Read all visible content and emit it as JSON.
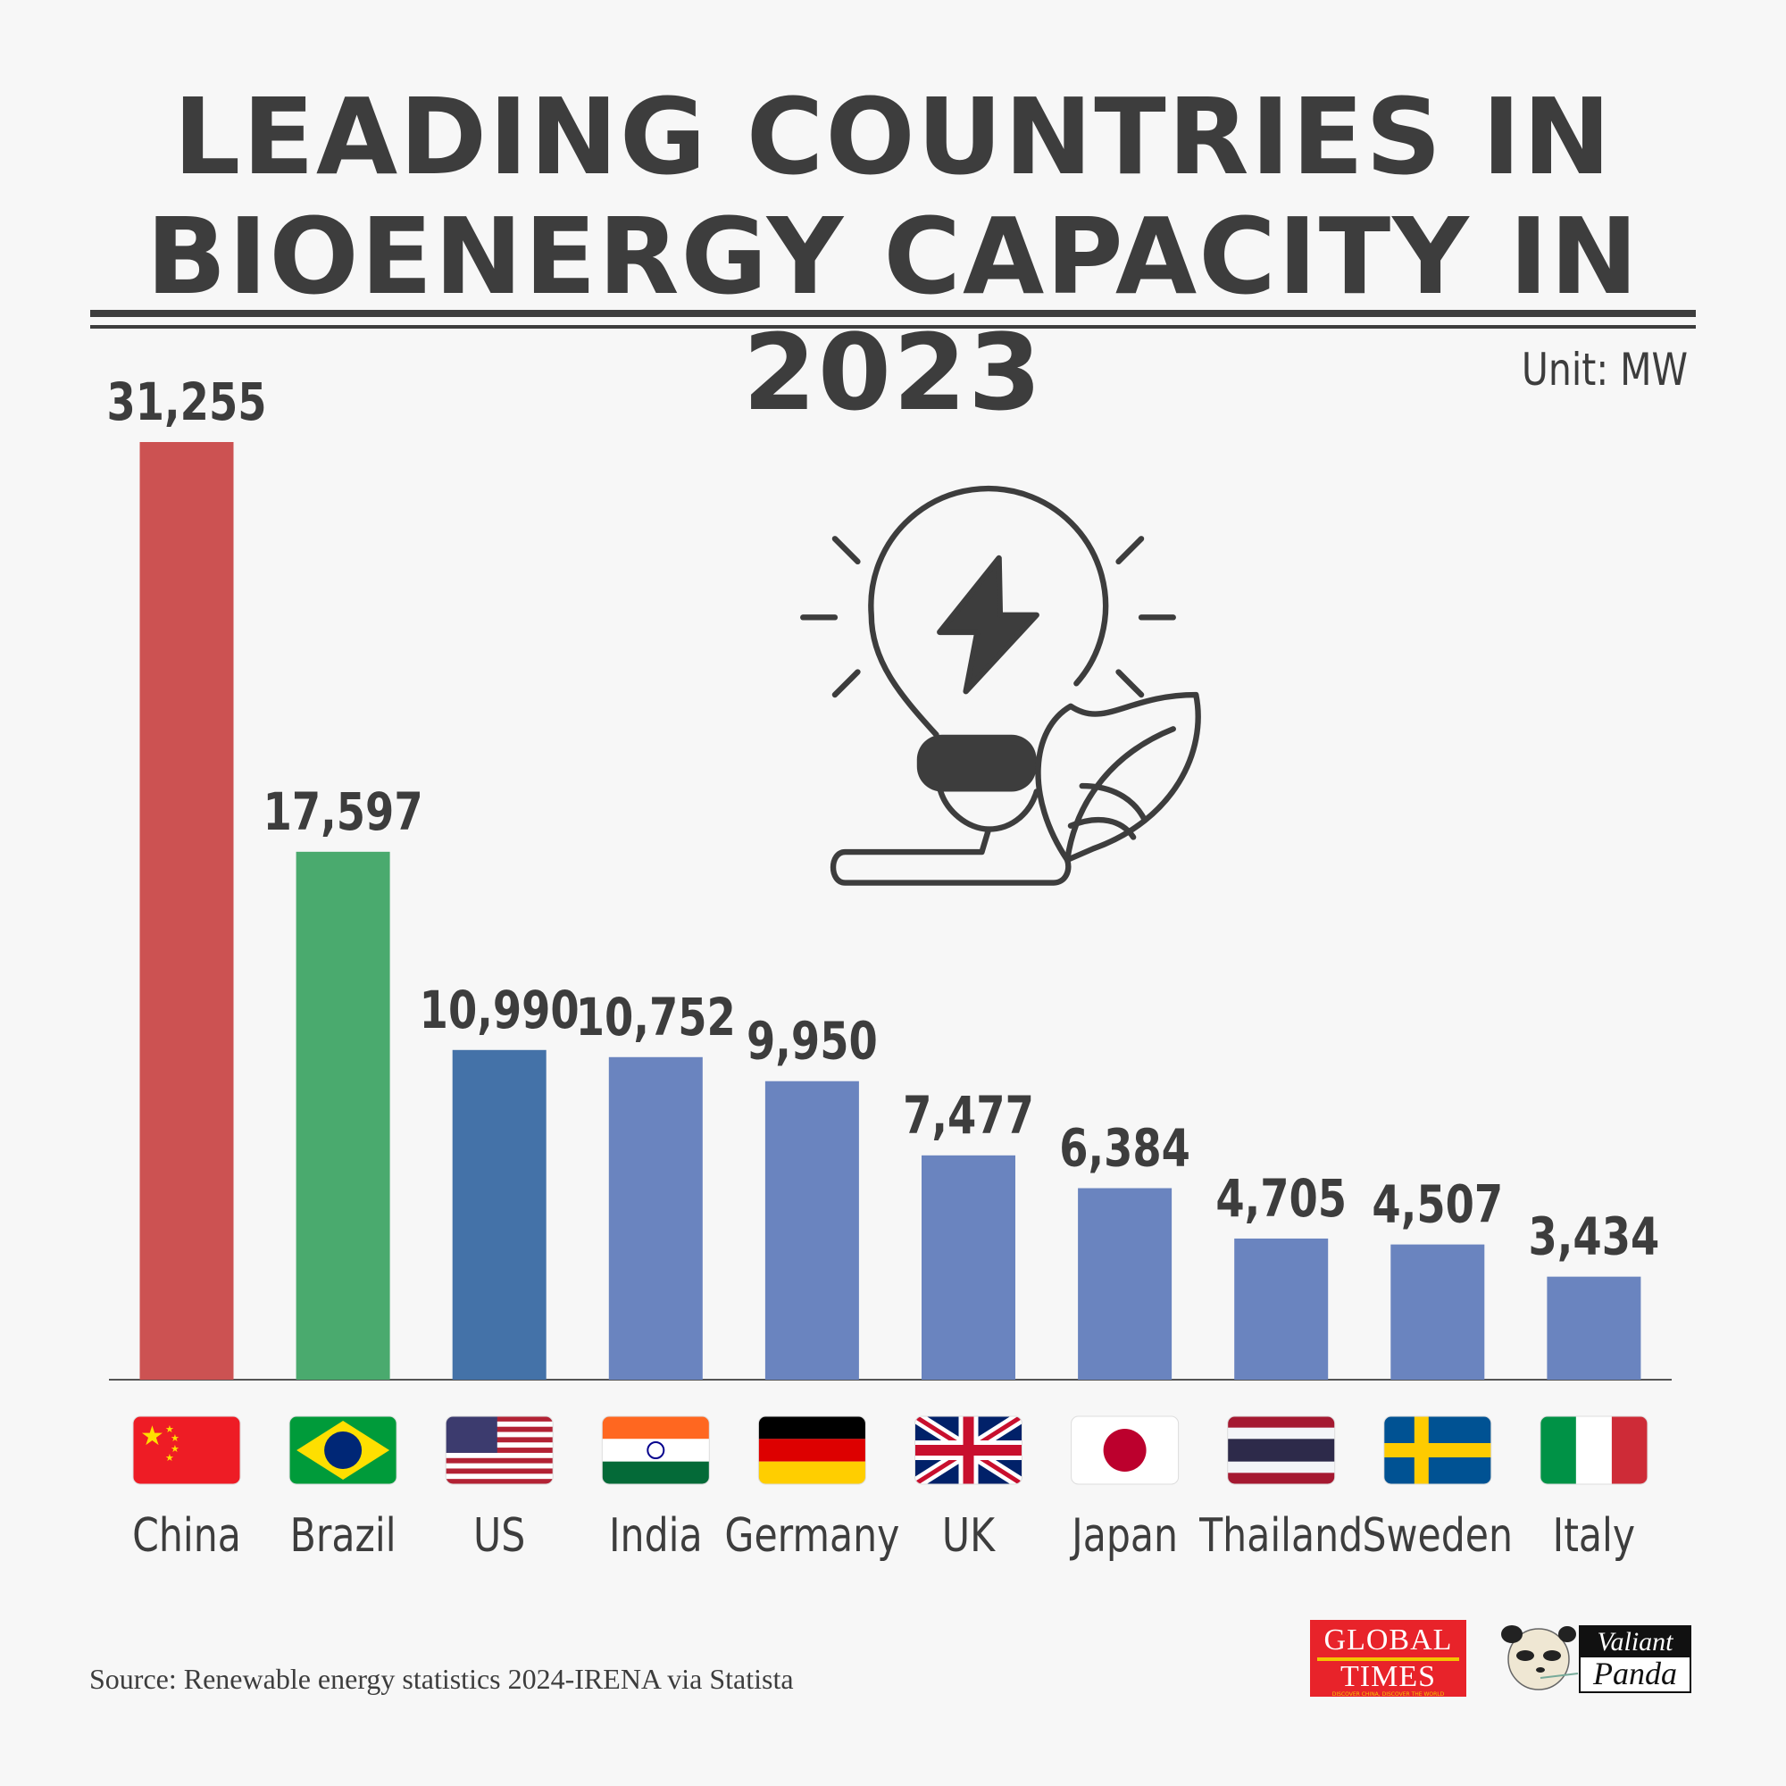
{
  "title_line1": "LEADING COUNTRIES IN",
  "title_line2": "BIOENERGY CAPACITY IN 2023",
  "unit": "Unit: MW",
  "source": "Source: Renewable energy statistics 2024-IRENA via Statista",
  "logos": {
    "global_times": {
      "line1": "GLOBAL",
      "line2": "TIMES",
      "tagline": "DISCOVER CHINA, DISCOVER THE WORLD"
    },
    "valiant_panda": {
      "line1": "Valiant",
      "line2": "Panda"
    }
  },
  "chart_data": {
    "type": "bar",
    "title": "LEADING COUNTRIES IN BIOENERGY CAPACITY IN 2023",
    "ylabel": "Unit: MW",
    "categories": [
      "China",
      "Brazil",
      "US",
      "India",
      "Germany",
      "UK",
      "Japan",
      "Thailand",
      "Sweden",
      "Italy"
    ],
    "values": [
      31255,
      17597,
      10990,
      10752,
      9950,
      7477,
      6384,
      4705,
      4507,
      3434
    ],
    "value_labels": [
      "31,255",
      "17,597",
      "10,990",
      "10,752",
      "9,950",
      "7,477",
      "6,384",
      "4,705",
      "4,507",
      "3,434"
    ],
    "colors": [
      "#cc5252",
      "#4aaa6e",
      "#4472a8",
      "#6a84bf",
      "#6a84bf",
      "#6a84bf",
      "#6a84bf",
      "#6a84bf",
      "#6a84bf",
      "#6a84bf"
    ],
    "flags": [
      "china-flag",
      "brazil-flag",
      "us-flag",
      "india-flag",
      "germany-flag",
      "uk-flag",
      "japan-flag",
      "thailand-flag",
      "sweden-flag",
      "italy-flag"
    ],
    "ylim": [
      0,
      31255
    ],
    "grid": false,
    "legend": "none"
  },
  "colors": {
    "text": "#3d3d3d",
    "background": "#f7f7f7"
  },
  "icon": "lightbulb-leaf-icon"
}
